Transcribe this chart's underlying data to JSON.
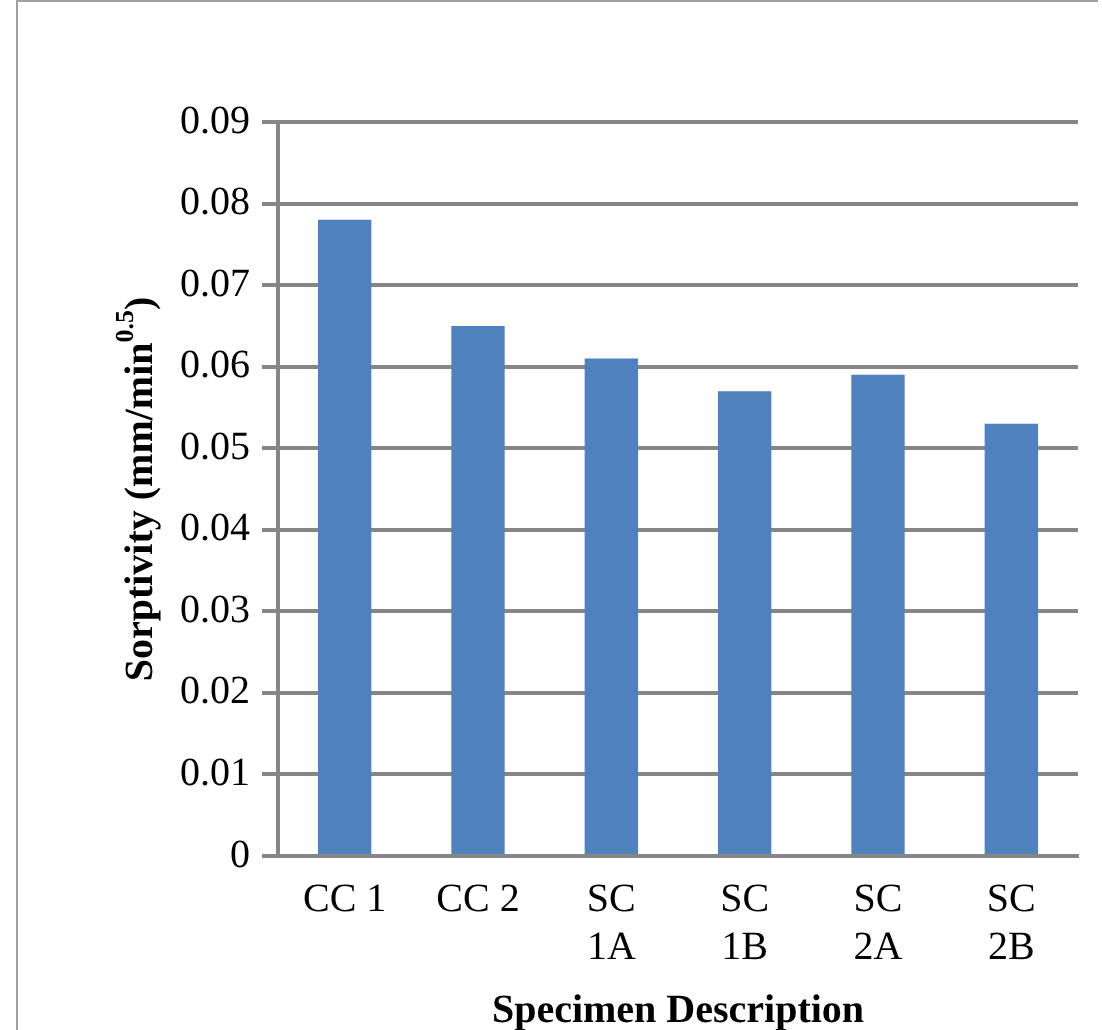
{
  "chart_data": {
    "type": "bar",
    "xlabel": "Specimen Description",
    "ylabel": "Sorptivity (mm/min$^{0.5}$)",
    "categories": [
      "CC 1",
      "CC 2",
      "SC 1A",
      "SC 1B",
      "SC 2A",
      "SC 2B"
    ],
    "values": [
      0.078,
      0.065,
      0.061,
      0.057,
      0.059,
      0.053
    ],
    "color": "#4f81bd",
    "ylim": [
      0,
      0.09
    ],
    "yticks": [
      0,
      0.01,
      0.02,
      0.03,
      0.04,
      0.05,
      0.06,
      0.07,
      0.08,
      0.09
    ],
    "grid": "y",
    "legend": false
  }
}
